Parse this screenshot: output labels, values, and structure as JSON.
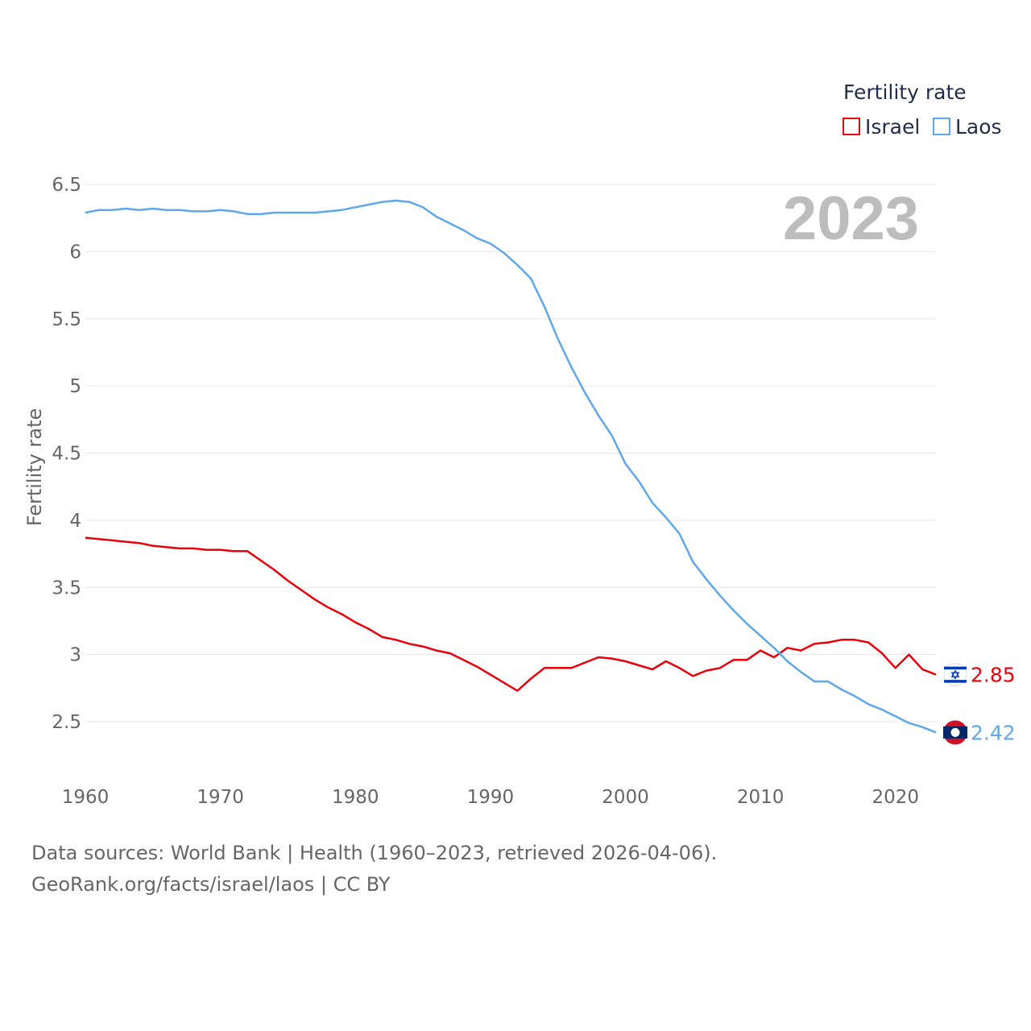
{
  "chart_data": {
    "type": "line",
    "title": "",
    "xlabel": "",
    "ylabel": "Fertility rate",
    "year_label": "2023",
    "legend": {
      "title": "Fertility rate",
      "position": "top-right"
    },
    "xlim": [
      1960,
      2023
    ],
    "ylim": [
      2.25,
      6.55
    ],
    "x_ticks": [
      1960,
      1970,
      1980,
      1990,
      2000,
      2010,
      2020
    ],
    "y_ticks": [
      2.5,
      3,
      3.5,
      4,
      4.5,
      5,
      5.5,
      6,
      6.5
    ],
    "y_tick_labels": [
      "2.5",
      "3",
      "3.5",
      "4",
      "4.5",
      "5",
      "5.5",
      "6",
      "6.5"
    ],
    "x": [
      1960,
      1961,
      1962,
      1963,
      1964,
      1965,
      1966,
      1967,
      1968,
      1969,
      1970,
      1971,
      1972,
      1973,
      1974,
      1975,
      1976,
      1977,
      1978,
      1979,
      1980,
      1981,
      1982,
      1983,
      1984,
      1985,
      1986,
      1987,
      1988,
      1989,
      1990,
      1991,
      1992,
      1993,
      1994,
      1995,
      1996,
      1997,
      1998,
      1999,
      2000,
      2001,
      2002,
      2003,
      2004,
      2005,
      2006,
      2007,
      2008,
      2009,
      2010,
      2011,
      2012,
      2013,
      2014,
      2015,
      2016,
      2017,
      2018,
      2019,
      2020,
      2021,
      2022,
      2023
    ],
    "series": [
      {
        "name": "Israel",
        "color": "#e8000b",
        "end_label": "2.85",
        "values": [
          3.87,
          3.86,
          3.85,
          3.84,
          3.83,
          3.81,
          3.8,
          3.79,
          3.79,
          3.78,
          3.78,
          3.77,
          3.77,
          3.7,
          3.63,
          3.55,
          3.48,
          3.41,
          3.35,
          3.3,
          3.24,
          3.19,
          3.13,
          3.11,
          3.08,
          3.06,
          3.03,
          3.01,
          2.96,
          2.91,
          2.85,
          2.79,
          2.73,
          2.82,
          2.9,
          2.9,
          2.9,
          2.94,
          2.98,
          2.97,
          2.95,
          2.92,
          2.89,
          2.95,
          2.9,
          2.84,
          2.88,
          2.9,
          2.96,
          2.96,
          3.03,
          2.98,
          3.05,
          3.03,
          3.08,
          3.09,
          3.11,
          3.11,
          3.09,
          3.01,
          2.9,
          3.0,
          2.89,
          2.85
        ]
      },
      {
        "name": "Laos",
        "color": "#5ea7e8",
        "end_label": "2.42",
        "values": [
          6.29,
          6.31,
          6.31,
          6.32,
          6.31,
          6.32,
          6.31,
          6.31,
          6.3,
          6.3,
          6.31,
          6.3,
          6.28,
          6.28,
          6.29,
          6.29,
          6.29,
          6.29,
          6.3,
          6.31,
          6.33,
          6.35,
          6.37,
          6.38,
          6.37,
          6.33,
          6.26,
          6.21,
          6.16,
          6.1,
          6.06,
          5.99,
          5.9,
          5.8,
          5.59,
          5.35,
          5.14,
          4.95,
          4.78,
          4.63,
          4.42,
          4.29,
          4.13,
          4.02,
          3.9,
          3.69,
          3.56,
          3.44,
          3.33,
          3.23,
          3.14,
          3.05,
          2.95,
          2.87,
          2.8,
          2.8,
          2.74,
          2.69,
          2.63,
          2.59,
          2.54,
          2.49,
          2.46,
          2.42
        ]
      }
    ]
  },
  "legend_items": [
    {
      "label": "Israel",
      "color": "#e8000b"
    },
    {
      "label": "Laos",
      "color": "#5ea7e8"
    }
  ],
  "footer": {
    "line1": "Data sources: World Bank | Health (1960–2023, retrieved 2026-04-06).",
    "line2": "GeoRank.org/facts/israel/laos | CC BY"
  }
}
